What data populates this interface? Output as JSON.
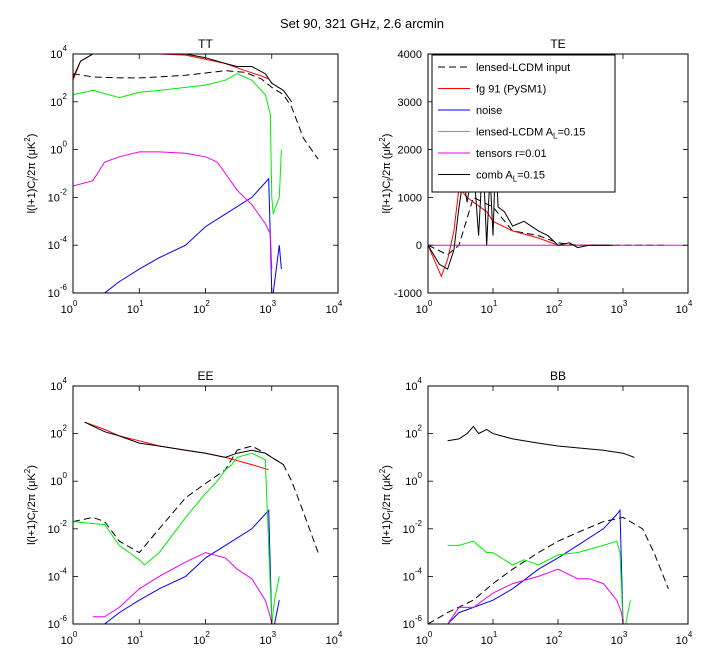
{
  "figure": {
    "title": "Set 90, 321 GHz,  2.6 arcmin"
  },
  "legend": {
    "entries": [
      {
        "label": "lensed-LCDM input",
        "color": "#000000",
        "dash": "dash"
      },
      {
        "label": "fg 91 (PySM1)",
        "color": "#ff0000",
        "dash": "solid"
      },
      {
        "label": "noise",
        "color": "#0000ff",
        "dash": "solid"
      },
      {
        "label": "lensed-LCDM A",
        "sub": "L",
        "suffix": "=0.15",
        "color": "#00ee00",
        "dash": "solid"
      },
      {
        "label": "tensors r=0.01",
        "color": "#ee00ee",
        "dash": "solid"
      },
      {
        "label": "comb A",
        "sub": "L",
        "suffix": "=0.15",
        "color": "#000000",
        "dash": "solid"
      }
    ]
  },
  "chart_data": [
    {
      "type": "line",
      "title": "TT",
      "xscale": "log",
      "yscale": "log",
      "xlim": [
        1,
        10000
      ],
      "ylim": [
        1e-06,
        10000
      ],
      "xticks": [
        "10^0",
        "10^1",
        "10^2",
        "10^3",
        "10^4"
      ],
      "yticks": [
        "10^-6",
        "10^-4",
        "10^-2",
        "10^0",
        "10^2",
        "10^4"
      ],
      "ylabel": "l(l+1)C_l/2π (μK^2)",
      "xlabel": "",
      "series": [
        {
          "name": "lensed-LCDM input",
          "color": "#000000",
          "dash": "dash",
          "x": [
            1,
            2,
            5,
            10,
            20,
            50,
            100,
            200,
            400,
            700,
            1000,
            1500,
            2000,
            3000,
            5000
          ],
          "y": [
            1500,
            1100,
            1000,
            1000,
            1100,
            1300,
            1600,
            2000,
            1700,
            900,
            400,
            200,
            60,
            3,
            0.4
          ]
        },
        {
          "name": "fg 91 (PySM1)",
          "color": "#ff0000",
          "dash": "solid",
          "x": [
            1,
            1.3,
            2,
            5,
            10,
            20,
            50,
            100,
            200,
            400,
            700,
            900
          ],
          "y": [
            800,
            5000,
            10000,
            10000,
            10000,
            10000,
            9000,
            6000,
            4000,
            2000,
            1200,
            900
          ]
        },
        {
          "name": "noise",
          "color": "#0000ff",
          "dash": "solid",
          "x": [
            3,
            5,
            10,
            20,
            50,
            100,
            200,
            500,
            900,
            1000,
            1050,
            1300,
            1400
          ],
          "y": [
            1e-06,
            3e-06,
            1e-05,
            3e-05,
            0.0001,
            0.0006,
            0.002,
            0.01,
            0.06,
            1e-06,
            1e-06,
            0.0001,
            1e-05
          ]
        },
        {
          "name": "lensed-LCDM A_L=0.15",
          "color": "#00ee00",
          "dash": "solid",
          "x": [
            1,
            2,
            5,
            10,
            20,
            50,
            100,
            200,
            300,
            500,
            800,
            950,
            1000,
            1050,
            1100,
            1300,
            1400
          ],
          "y": [
            200,
            300,
            150,
            250,
            300,
            400,
            500,
            800,
            1500,
            800,
            200,
            30,
            0.01,
            0.002,
            0.003,
            0.01,
            1
          ]
        },
        {
          "name": "tensors r=0.01",
          "color": "#ee00ee",
          "dash": "solid",
          "x": [
            1,
            2,
            3,
            5,
            10,
            20,
            50,
            100,
            150,
            200,
            300,
            500,
            800,
            950,
            1000
          ],
          "y": [
            0.03,
            0.05,
            0.3,
            0.5,
            0.8,
            0.8,
            0.7,
            0.5,
            0.3,
            0.1,
            0.02,
            0.005,
            0.0008,
            0.0003,
            1e-05
          ]
        },
        {
          "name": "comb A_L=0.15",
          "color": "#000000",
          "dash": "solid",
          "x": [
            1,
            1.3,
            2,
            5,
            10,
            20,
            50,
            100,
            200,
            300,
            500,
            800,
            1000,
            1500,
            2000
          ],
          "y": [
            1000,
            5000,
            10000,
            10000,
            10000,
            10000,
            10000,
            7000,
            4000,
            3000,
            3000,
            1500,
            600,
            300,
            100
          ]
        }
      ]
    },
    {
      "type": "line",
      "title": "TE",
      "xscale": "log",
      "yscale": "linear",
      "xlim": [
        1,
        10000
      ],
      "ylim": [
        -1000,
        4000
      ],
      "xticks": [
        "10^0",
        "10^1",
        "10^2",
        "10^3",
        "10^4"
      ],
      "yticks": [
        "-1000",
        "0",
        "1000",
        "2000",
        "3000",
        "4000"
      ],
      "ylabel": "l(l+1)C_l/2π (μK^2)",
      "xlabel": "",
      "series": [
        {
          "name": "lensed-LCDM input",
          "color": "#000000",
          "dash": "dash",
          "x": [
            1,
            2,
            3,
            5,
            10,
            20,
            50,
            100,
            200,
            500,
            1000,
            2000,
            5000
          ],
          "y": [
            0,
            -200,
            0,
            1000,
            800,
            300,
            200,
            50,
            0,
            0,
            0,
            0,
            0
          ]
        },
        {
          "name": "fg 91 (PySM1)",
          "color": "#ff0000",
          "dash": "solid",
          "x": [
            1,
            1.6,
            2,
            2.5,
            3,
            4,
            5,
            8,
            10,
            20,
            50,
            100,
            200,
            500
          ],
          "y": [
            0,
            -650,
            -300,
            300,
            1200,
            1000,
            900,
            700,
            500,
            300,
            150,
            0,
            0,
            0
          ]
        },
        {
          "name": "tensors r=0.01",
          "color": "#ee00ee",
          "dash": "solid",
          "x": [
            1,
            10,
            100,
            1000,
            10000
          ],
          "y": [
            0,
            0,
            0,
            0,
            0
          ]
        },
        {
          "name": "comb A_L=0.15",
          "color": "#000000",
          "dash": "solid",
          "x": [
            1,
            1.5,
            2,
            2.5,
            3,
            3.5,
            4,
            5,
            6,
            7,
            8,
            9,
            10,
            11,
            12,
            15,
            20,
            30,
            50,
            70,
            100,
            150,
            200,
            300,
            500,
            700
          ],
          "y": [
            0,
            -400,
            -500,
            -100,
            800,
            1400,
            900,
            1700,
            200,
            1900,
            0,
            1500,
            200,
            1900,
            800,
            700,
            400,
            500,
            300,
            200,
            0,
            50,
            -50,
            0,
            0,
            0
          ]
        }
      ]
    },
    {
      "type": "line",
      "title": "EE",
      "xscale": "log",
      "yscale": "log",
      "xlim": [
        1,
        10000
      ],
      "ylim": [
        1e-06,
        10000
      ],
      "xticks": [
        "10^0",
        "10^1",
        "10^2",
        "10^3",
        "10^4"
      ],
      "yticks": [
        "10^-6",
        "10^-4",
        "10^-2",
        "10^0",
        "10^2",
        "10^4"
      ],
      "ylabel": "l(l+1)C_l/2π (μK^2)",
      "xlabel": "",
      "series": [
        {
          "name": "lensed-LCDM input",
          "color": "#000000",
          "dash": "dash",
          "x": [
            1,
            2,
            3,
            5,
            10,
            20,
            50,
            100,
            200,
            300,
            500,
            800,
            1000,
            1500,
            2000,
            3000,
            5000
          ],
          "y": [
            0.02,
            0.03,
            0.02,
            0.003,
            0.001,
            0.01,
            0.2,
            0.8,
            3,
            20,
            30,
            15,
            10,
            5,
            1,
            0.05,
            0.001
          ]
        },
        {
          "name": "fg 91 (PySM1)",
          "color": "#ff0000",
          "dash": "solid",
          "x": [
            1.5,
            3,
            5,
            10,
            20,
            50,
            100,
            200,
            500,
            900
          ],
          "y": [
            300,
            150,
            80,
            50,
            30,
            20,
            15,
            10,
            5,
            3
          ]
        },
        {
          "name": "noise",
          "color": "#0000ff",
          "dash": "solid",
          "x": [
            3,
            5,
            10,
            20,
            50,
            100,
            200,
            500,
            900,
            1000,
            1100,
            1300
          ],
          "y": [
            1e-06,
            3e-06,
            1e-05,
            3e-05,
            0.0001,
            0.0006,
            0.002,
            0.01,
            0.06,
            1e-06,
            1e-06,
            1e-05
          ]
        },
        {
          "name": "lensed-LCDM A_L=0.15",
          "color": "#00ee00",
          "dash": "solid",
          "x": [
            1,
            3,
            5,
            10,
            12,
            20,
            50,
            100,
            150,
            200,
            250,
            300,
            500,
            800,
            1000,
            1100,
            1300
          ],
          "y": [
            0.02,
            0.015,
            0.002,
            0.0005,
            0.0003,
            0.001,
            0.03,
            0.3,
            1,
            3,
            5,
            10,
            15,
            8,
            1e-06,
            1e-05,
            0.0001
          ]
        },
        {
          "name": "tensors r=0.01",
          "color": "#ee00ee",
          "dash": "solid",
          "x": [
            2,
            3,
            5,
            10,
            20,
            50,
            100,
            200,
            300,
            500,
            800,
            950,
            1000
          ],
          "y": [
            2e-06,
            2e-06,
            5e-06,
            3e-05,
            0.0001,
            0.0004,
            0.001,
            0.0006,
            0.0002,
            8e-05,
            1e-05,
            2e-06,
            1e-06
          ]
        },
        {
          "name": "comb A_L=0.15",
          "color": "#000000",
          "dash": "solid",
          "x": [
            1.5,
            3,
            5,
            10,
            20,
            50,
            100,
            200,
            300,
            500,
            800,
            1000,
            1500
          ],
          "y": [
            300,
            120,
            80,
            40,
            30,
            20,
            15,
            10,
            15,
            20,
            15,
            10,
            5
          ]
        }
      ]
    },
    {
      "type": "line",
      "title": "BB",
      "xscale": "log",
      "yscale": "log",
      "xlim": [
        1,
        10000
      ],
      "ylim": [
        1e-06,
        10000
      ],
      "xticks": [
        "10^0",
        "10^1",
        "10^2",
        "10^3",
        "10^4"
      ],
      "yticks": [
        "10^-6",
        "10^-4",
        "10^-2",
        "10^0",
        "10^2",
        "10^4"
      ],
      "ylabel": "l(l+1)C_l/2π (μK^2)",
      "xlabel": "",
      "series": [
        {
          "name": "lensed-LCDM input",
          "color": "#000000",
          "dash": "dash",
          "x": [
            1,
            2,
            5,
            10,
            20,
            50,
            100,
            200,
            500,
            1000,
            2000,
            3000,
            5000
          ],
          "y": [
            1e-06,
            3e-06,
            1e-05,
            5e-05,
            0.0002,
            0.001,
            0.003,
            0.007,
            0.02,
            0.03,
            0.01,
            0.001,
            3e-05
          ]
        },
        {
          "name": "noise",
          "color": "#0000ff",
          "dash": "solid",
          "x": [
            2,
            3,
            5,
            10,
            20,
            50,
            100,
            200,
            500,
            800,
            900,
            1000,
            1300
          ],
          "y": [
            1e-06,
            3e-06,
            5e-06,
            1e-05,
            3e-05,
            0.0002,
            0.0006,
            0.002,
            0.01,
            0.04,
            0.06,
            1e-06,
            1e-06
          ]
        },
        {
          "name": "lensed-LCDM A_L=0.15",
          "color": "#00ee00",
          "dash": "solid",
          "x": [
            2,
            3,
            5,
            8,
            10,
            20,
            30,
            50,
            100,
            200,
            500,
            800,
            900,
            1000,
            1100,
            1300
          ],
          "y": [
            0.002,
            0.002,
            0.003,
            0.001,
            0.001,
            0.0003,
            0.0005,
            0.0003,
            0.0008,
            0.001,
            0.002,
            0.003,
            0.001,
            1e-06,
            1e-06,
            1e-05
          ]
        },
        {
          "name": "tensors r=0.01",
          "color": "#ee00ee",
          "dash": "solid",
          "x": [
            2,
            3,
            5,
            10,
            20,
            50,
            100,
            200,
            300,
            500,
            800,
            950,
            1000
          ],
          "y": [
            1e-06,
            5e-06,
            5e-06,
            2e-05,
            5e-05,
            0.0001,
            0.0002,
            8e-05,
            8e-05,
            5e-05,
            1e-05,
            3e-06,
            1e-06
          ]
        },
        {
          "name": "comb A_L=0.15",
          "color": "#000000",
          "dash": "solid",
          "x": [
            2,
            3,
            4,
            5,
            6,
            8,
            10,
            20,
            50,
            100,
            200,
            500,
            1000,
            1500
          ],
          "y": [
            50,
            60,
            100,
            200,
            100,
            150,
            100,
            60,
            40,
            30,
            25,
            20,
            15,
            10
          ]
        }
      ]
    }
  ]
}
